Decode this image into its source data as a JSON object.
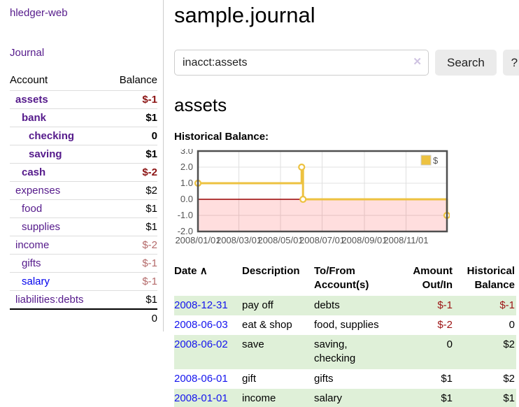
{
  "colors": {
    "link_visited_purple": "#551a8b",
    "link_blue": "#0000ee",
    "negative_red": "#8c1414",
    "negative_dim_red": "#b46a6a",
    "row_highlight_green": "#dff0d8",
    "button_gray": "#ebebeb"
  },
  "sidebar": {
    "brand": "hledger-web",
    "journal_link": "Journal",
    "table": {
      "account_header": "Account",
      "balance_header": "Balance",
      "accounts": [
        {
          "name": "assets",
          "balance": "$-1",
          "level": 1,
          "inacct": true,
          "unvisited": false
        },
        {
          "name": "bank",
          "balance": "$1",
          "level": 2,
          "inacct": true,
          "unvisited": false
        },
        {
          "name": "checking",
          "balance": "0",
          "level": 3,
          "inacct": true,
          "unvisited": false
        },
        {
          "name": "saving",
          "balance": "$1",
          "level": 3,
          "inacct": true,
          "unvisited": false
        },
        {
          "name": "cash",
          "balance": "$-2",
          "level": 2,
          "inacct": true,
          "unvisited": false
        },
        {
          "name": "expenses",
          "balance": "$2",
          "level": 1,
          "inacct": false,
          "unvisited": false
        },
        {
          "name": "food",
          "balance": "$1",
          "level": 2,
          "inacct": false,
          "unvisited": false
        },
        {
          "name": "supplies",
          "balance": "$1",
          "level": 2,
          "inacct": false,
          "unvisited": false
        },
        {
          "name": "income",
          "balance": "$-2",
          "level": 1,
          "inacct": false,
          "unvisited": false
        },
        {
          "name": "gifts",
          "balance": "$-1",
          "level": 2,
          "inacct": false,
          "unvisited": false
        },
        {
          "name": "salary",
          "balance": "$-1",
          "level": 2,
          "inacct": false,
          "unvisited": true
        },
        {
          "name": "liabilities:debts",
          "balance": "$1",
          "level": 1,
          "inacct": false,
          "unvisited": false
        }
      ],
      "total": "0"
    }
  },
  "header": {
    "title": "sample.journal"
  },
  "search": {
    "value": "inacct:assets",
    "clear_icon": "✕",
    "search_button": "Search",
    "help_button": "?"
  },
  "main": {
    "account_heading": "assets",
    "chart_label": "Historical Balance:"
  },
  "chart_data": {
    "type": "line",
    "title": "Historical Balance:",
    "step": true,
    "series": [
      {
        "name": "$",
        "color": "#edc240",
        "points": [
          [
            "2008/01/01",
            1
          ],
          [
            "2008/06/01",
            2
          ],
          [
            "2008/06/03",
            0
          ],
          [
            "2008/12/31",
            -1
          ]
        ]
      }
    ],
    "xlim": [
      "2008/01/01",
      "2008/12/31"
    ],
    "ylim": [
      -2,
      3
    ],
    "x_ticks": [
      "2008/01/01",
      "2008/03/01",
      "2008/05/01",
      "2008/07/01",
      "2008/09/01",
      "2008/11/01"
    ],
    "y_ticks": [
      3.0,
      2.0,
      1.0,
      0.0,
      -1.0,
      -2.0
    ],
    "grid": true,
    "grid_color": "#e0e0e0",
    "border_color": "#4f4f4f",
    "tick_label_color": "#545454",
    "negative_region_color": "rgba(255,0,0,0.13)",
    "zero_line_color": "#990000",
    "legend_position": "top-right",
    "legend_label": "$"
  },
  "register": {
    "header": {
      "date": "Date",
      "sort_icon": "∧",
      "description": "Description",
      "accounts": "To/From Account(s)",
      "amount": "Amount Out/In",
      "balance": "Historical Balance"
    },
    "rows": [
      {
        "date": "2008-12-31",
        "description": "pay off",
        "accounts": "debts",
        "amount": "$-1",
        "balance": "$-1"
      },
      {
        "date": "2008-06-03",
        "description": "eat & shop",
        "accounts": "food, supplies",
        "amount": "$-2",
        "balance": "0"
      },
      {
        "date": "2008-06-02",
        "description": "save",
        "accounts": "saving, checking",
        "amount": "0",
        "balance": "$2"
      },
      {
        "date": "2008-06-01",
        "description": "gift",
        "accounts": "gifts",
        "amount": "$1",
        "balance": "$2"
      },
      {
        "date": "2008-01-01",
        "description": "income",
        "accounts": "salary",
        "amount": "$1",
        "balance": "$1"
      }
    ]
  }
}
